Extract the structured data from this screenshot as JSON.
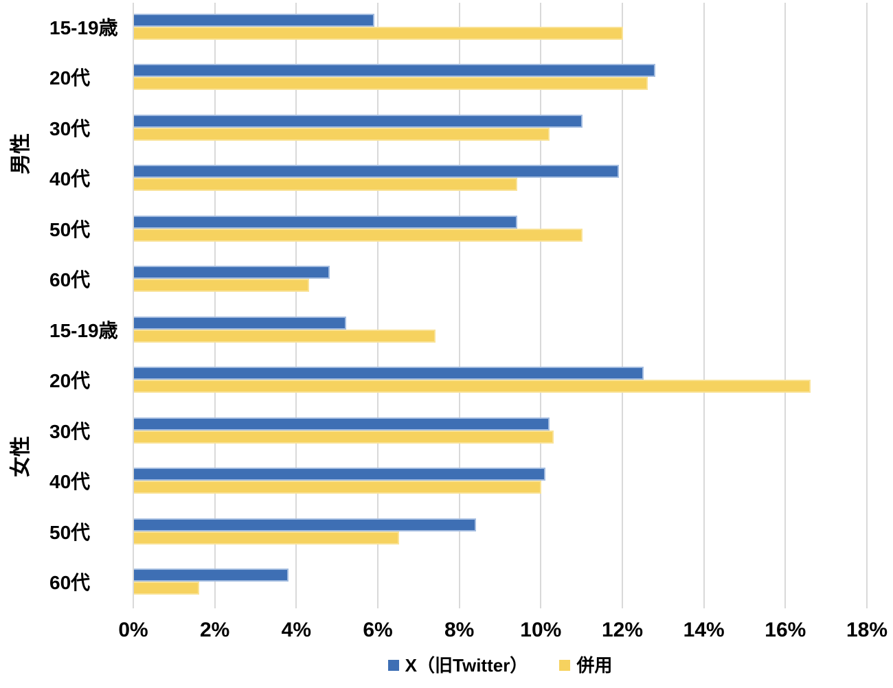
{
  "chart_data": {
    "type": "bar",
    "orientation": "horizontal",
    "title": "",
    "x_axis": {
      "min": 0,
      "max": 18,
      "tick_step": 2,
      "ticks": [
        "0%",
        "2%",
        "4%",
        "6%",
        "8%",
        "10%",
        "12%",
        "14%",
        "16%",
        "18%"
      ],
      "grid": true
    },
    "groups": [
      {
        "label": "男性",
        "categories": [
          "15-19歳",
          "20代",
          "30代",
          "40代",
          "50代",
          "60代"
        ]
      },
      {
        "label": "女性",
        "categories": [
          "15-19歳",
          "20代",
          "30代",
          "40代",
          "50代",
          "60代"
        ]
      }
    ],
    "series": [
      {
        "name": "X（旧Twitter）",
        "color": "#3E6FB4",
        "border_color": "#A3BCE0",
        "values": [
          5.9,
          12.8,
          11.0,
          11.9,
          9.4,
          4.8,
          5.2,
          12.5,
          10.2,
          10.1,
          8.4,
          3.8
        ]
      },
      {
        "name": "併用",
        "color": "#F6D25F",
        "border_color": "#F9E296",
        "values": [
          12.0,
          12.6,
          10.2,
          9.4,
          11.0,
          4.3,
          7.4,
          16.6,
          10.3,
          10.0,
          6.5,
          1.6
        ]
      }
    ],
    "legend_position": "bottom",
    "colors": {
      "grid": "#D9D9D9",
      "frame": "#D9D9D9",
      "text": "#000000",
      "background": "#FFFFFF"
    }
  }
}
